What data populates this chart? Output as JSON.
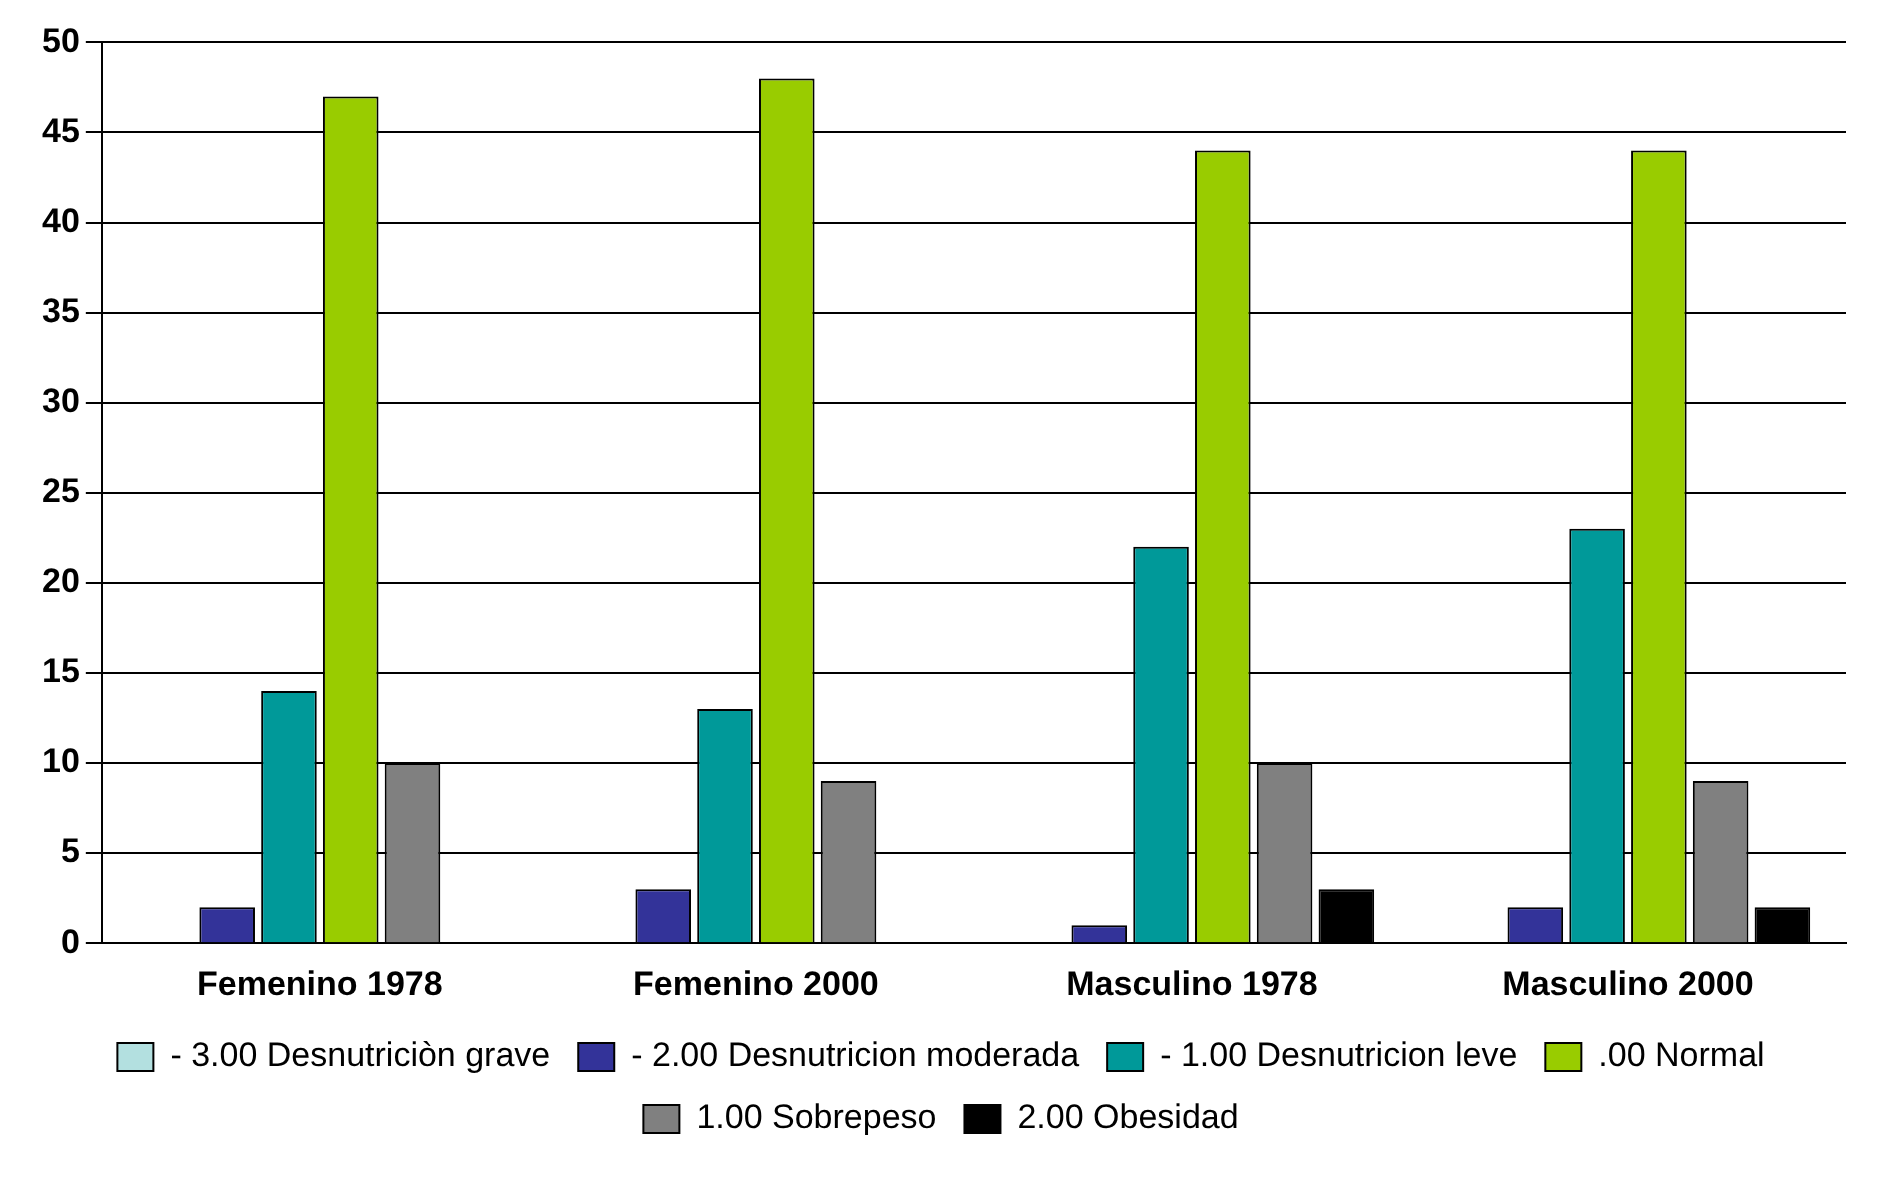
{
  "chart_data": {
    "type": "bar",
    "categories": [
      "Femenino 1978",
      "Femenino 2000",
      "Masculino 1978",
      "Masculino 2000"
    ],
    "series": [
      {
        "name": "- 3.00 Desnutriciòn grave",
        "color": "#b3e0e0",
        "values": [
          0,
          0,
          0,
          0
        ]
      },
      {
        "name": "- 2.00 Desnutricion moderada",
        "color": "#333399",
        "values": [
          2,
          3,
          1,
          2
        ]
      },
      {
        "name": "- 1.00 Desnutricion leve",
        "color": "#009999",
        "values": [
          14,
          13,
          22,
          23
        ]
      },
      {
        "name": ".00 Normal",
        "color": "#99cc00",
        "values": [
          47,
          48,
          44,
          44
        ]
      },
      {
        "name": "1.00 Sobrepeso",
        "color": "#808080",
        "values": [
          10,
          9,
          10,
          9
        ]
      },
      {
        "name": "2.00 Obesidad",
        "color": "#000000",
        "values": [
          0,
          0,
          3,
          2
        ]
      }
    ],
    "ylim": [
      0,
      50
    ],
    "yticks": [
      0,
      5,
      10,
      15,
      20,
      25,
      30,
      35,
      40,
      45,
      50
    ],
    "grid": "y",
    "legend": "bottom"
  }
}
